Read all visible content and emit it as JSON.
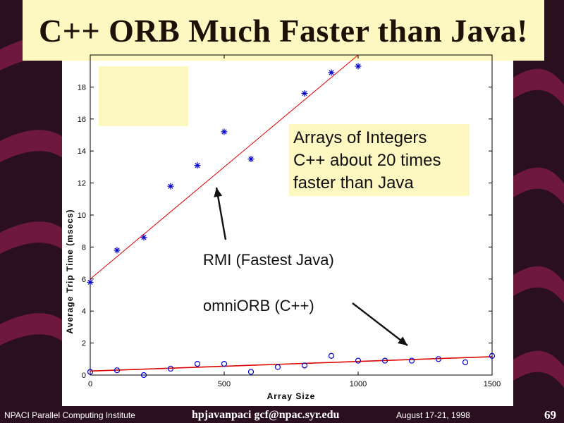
{
  "title": "C++ ORB Much Faster than Java!",
  "colors": {
    "background": "#2a0f1f",
    "stripe": "#7a1a45",
    "accent_panel": "#fdf7c2",
    "rmi_series": "#0000cc",
    "omniorb_series": "#0000cc",
    "fit_line": "#dd0000"
  },
  "annotations": {
    "note_lines": [
      "Arrays of Integers",
      "C++ about 20 times",
      "faster than Java"
    ],
    "rmi_label": "RMI (Fastest Java)",
    "omniorb_label": "omniORB (C++)"
  },
  "footer": {
    "institute": "NPACI Parallel Computing Institute",
    "course_email": "hpjavanpaci  gcf@npac.syr.edu",
    "date": "August 17-21, 1998",
    "page": "69"
  },
  "chart_data": {
    "type": "scatter",
    "xlabel": "Array Size",
    "ylabel": "Average Trip Time (msecs)",
    "xlim": [
      0,
      1500
    ],
    "ylim": [
      0,
      20
    ],
    "xticks": [
      0,
      500,
      1000,
      1500
    ],
    "yticks": [
      0,
      2,
      4,
      6,
      8,
      10,
      12,
      14,
      16,
      18
    ],
    "series": [
      {
        "marker": "asterisk",
        "x": [
          0,
          100,
          200,
          300,
          400,
          500,
          600,
          800,
          900,
          1000
        ],
        "y": [
          5.8,
          7.8,
          8.6,
          11.8,
          13.1,
          15.2,
          13.5,
          17.6,
          18.9,
          19.3
        ],
        "fit": {
          "x": [
            0,
            1000
          ],
          "y": [
            6.0,
            20.0
          ]
        }
      },
      {
        "marker": "circle",
        "x": [
          0,
          100,
          200,
          300,
          400,
          500,
          600,
          700,
          800,
          900,
          1000,
          1100,
          1200,
          1300,
          1400,
          1500
        ],
        "y": [
          0.2,
          0.3,
          0.0,
          0.4,
          0.7,
          0.7,
          0.2,
          0.5,
          0.6,
          1.2,
          0.9,
          0.9,
          0.9,
          1.0,
          0.8,
          1.2
        ],
        "fit": {
          "x": [
            0,
            1500
          ],
          "y": [
            0.25,
            1.15
          ]
        }
      }
    ]
  }
}
